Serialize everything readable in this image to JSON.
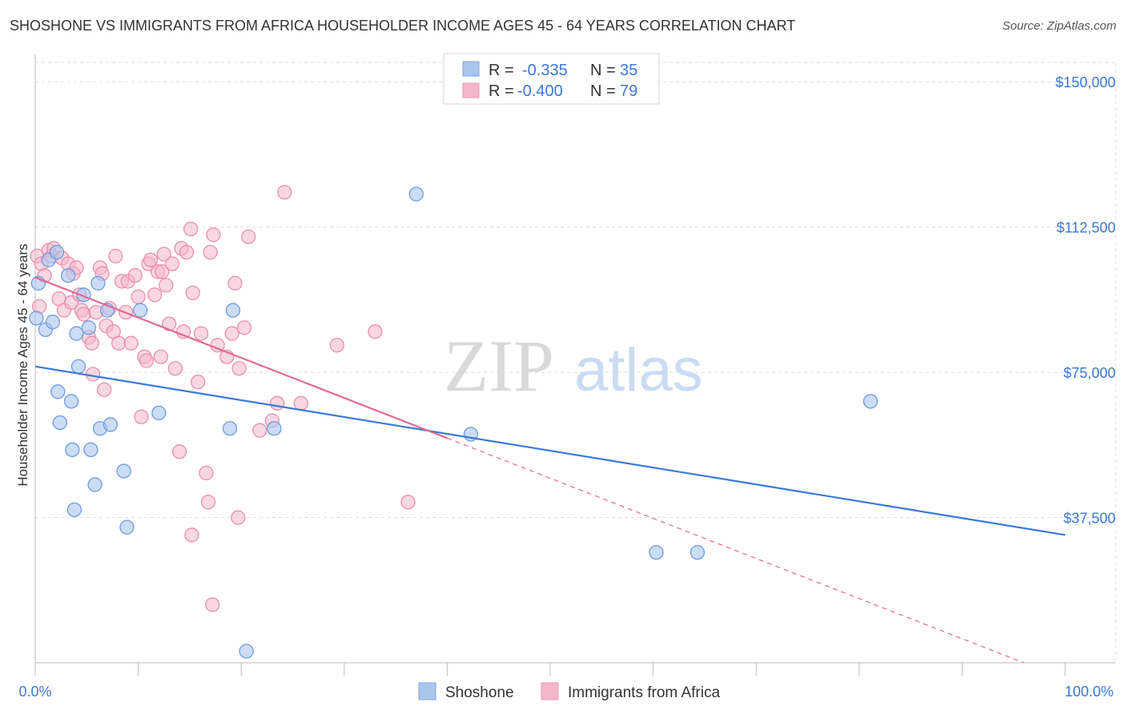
{
  "title": "SHOSHONE VS IMMIGRANTS FROM AFRICA HOUSEHOLDER INCOME AGES 45 - 64 YEARS CORRELATION CHART",
  "source": "Source: ZipAtlas.com",
  "colors": {
    "blue": "#3b78d8",
    "blue_fill": "#a9c6ee",
    "pink": "#e06a94",
    "pink_fill": "#f4b7ca",
    "grid": "#dddddd"
  },
  "chart_data": {
    "type": "scatter",
    "title": "SHOSHONE VS IMMIGRANTS FROM AFRICA HOUSEHOLDER INCOME AGES 45 - 64 YEARS CORRELATION CHART",
    "xlabel": "",
    "ylabel": "Householder Income Ages 45 - 64 years",
    "xlim": [
      0,
      100
    ],
    "ylim": [
      0,
      155000
    ],
    "y_ticks": [
      37500,
      75000,
      112500,
      150000
    ],
    "y_tick_labels": [
      "$37,500",
      "$75,000",
      "$112,500",
      "$150,000"
    ],
    "x_end_labels": [
      "0.0%",
      "100.0%"
    ],
    "grid": true,
    "watermark": {
      "part1": "ZIP",
      "part2": "atlas"
    },
    "legend_stats": [
      {
        "r_label": "R =",
        "r_value": "-0.335",
        "n_label": "N =",
        "n_value": "35"
      },
      {
        "r_label": "R =",
        "r_value": "-0.400",
        "n_label": "N =",
        "n_value": "79"
      }
    ],
    "series": [
      {
        "name": "Shoshone",
        "trend": {
          "x0": 0,
          "y0": 76500,
          "x1": 100,
          "y1": 33000,
          "style": "solid"
        },
        "points": [
          [
            0.1,
            89000
          ],
          [
            0.3,
            98000
          ],
          [
            1.0,
            86000
          ],
          [
            1.3,
            104000
          ],
          [
            1.7,
            88000
          ],
          [
            2.1,
            106000
          ],
          [
            2.2,
            70000
          ],
          [
            2.4,
            62000
          ],
          [
            3.2,
            100000
          ],
          [
            3.5,
            67500
          ],
          [
            3.6,
            55000
          ],
          [
            3.8,
            39500
          ],
          [
            4.0,
            85000
          ],
          [
            4.2,
            76500
          ],
          [
            4.7,
            95000
          ],
          [
            5.2,
            86500
          ],
          [
            5.4,
            55000
          ],
          [
            5.8,
            46000
          ],
          [
            6.1,
            98000
          ],
          [
            6.3,
            60500
          ],
          [
            7.0,
            91000
          ],
          [
            7.3,
            61500
          ],
          [
            8.6,
            49500
          ],
          [
            8.9,
            35000
          ],
          [
            10.2,
            91000
          ],
          [
            12.0,
            64500
          ],
          [
            18.9,
            60500
          ],
          [
            19.2,
            91000
          ],
          [
            20.5,
            3000
          ],
          [
            23.2,
            60500
          ],
          [
            37.0,
            121000
          ],
          [
            42.3,
            59000
          ],
          [
            60.3,
            28500
          ],
          [
            64.3,
            28500
          ],
          [
            81.1,
            67500
          ]
        ]
      },
      {
        "name": "Immigrants from Africa",
        "trend": {
          "x0": 0,
          "y0": 99500,
          "x1": 40,
          "y1": 58000,
          "style": "solid",
          "dashed_to": {
            "x": 96,
            "y": 0
          }
        },
        "points": [
          [
            0.2,
            105000
          ],
          [
            0.4,
            92000
          ],
          [
            0.6,
            103000
          ],
          [
            0.9,
            100000
          ],
          [
            1.3,
            106500
          ],
          [
            1.6,
            105000
          ],
          [
            1.8,
            107000
          ],
          [
            2.3,
            94000
          ],
          [
            2.6,
            104500
          ],
          [
            2.8,
            91000
          ],
          [
            3.2,
            103000
          ],
          [
            3.5,
            93000
          ],
          [
            3.7,
            100500
          ],
          [
            4.0,
            102000
          ],
          [
            4.3,
            95000
          ],
          [
            4.5,
            91000
          ],
          [
            4.7,
            90000
          ],
          [
            5.2,
            84000
          ],
          [
            5.5,
            82500
          ],
          [
            5.6,
            74500
          ],
          [
            5.9,
            90500
          ],
          [
            6.3,
            102000
          ],
          [
            6.5,
            100500
          ],
          [
            6.7,
            70500
          ],
          [
            6.9,
            87000
          ],
          [
            7.2,
            91500
          ],
          [
            7.6,
            85500
          ],
          [
            7.8,
            105000
          ],
          [
            8.1,
            82500
          ],
          [
            8.4,
            98500
          ],
          [
            8.8,
            90500
          ],
          [
            9.0,
            98500
          ],
          [
            9.3,
            82500
          ],
          [
            9.7,
            100000
          ],
          [
            10.0,
            94500
          ],
          [
            10.3,
            63500
          ],
          [
            10.6,
            79000
          ],
          [
            10.8,
            78000
          ],
          [
            11.0,
            103000
          ],
          [
            11.2,
            104000
          ],
          [
            11.6,
            95000
          ],
          [
            11.9,
            101000
          ],
          [
            12.2,
            79000
          ],
          [
            12.3,
            101000
          ],
          [
            12.5,
            105500
          ],
          [
            12.7,
            97500
          ],
          [
            13.0,
            87500
          ],
          [
            13.3,
            103000
          ],
          [
            13.6,
            76000
          ],
          [
            14.0,
            54500
          ],
          [
            14.2,
            107000
          ],
          [
            14.4,
            85500
          ],
          [
            14.7,
            106000
          ],
          [
            15.1,
            112000
          ],
          [
            15.2,
            33000
          ],
          [
            15.3,
            95500
          ],
          [
            15.8,
            72500
          ],
          [
            16.1,
            85000
          ],
          [
            16.6,
            49000
          ],
          [
            16.8,
            41500
          ],
          [
            17.0,
            106000
          ],
          [
            17.2,
            15000
          ],
          [
            17.3,
            110500
          ],
          [
            17.7,
            82000
          ],
          [
            18.6,
            79000
          ],
          [
            19.1,
            85000
          ],
          [
            19.4,
            98000
          ],
          [
            19.7,
            37500
          ],
          [
            19.8,
            76000
          ],
          [
            20.3,
            86500
          ],
          [
            20.7,
            110000
          ],
          [
            21.8,
            60000
          ],
          [
            23.0,
            62500
          ],
          [
            23.5,
            67000
          ],
          [
            24.2,
            121500
          ],
          [
            25.8,
            67000
          ],
          [
            29.3,
            82000
          ],
          [
            33.0,
            85500
          ],
          [
            36.2,
            41500
          ]
        ]
      }
    ]
  },
  "legend_bottom": [
    {
      "label": "Shoshone"
    },
    {
      "label": "Immigrants from Africa"
    }
  ]
}
